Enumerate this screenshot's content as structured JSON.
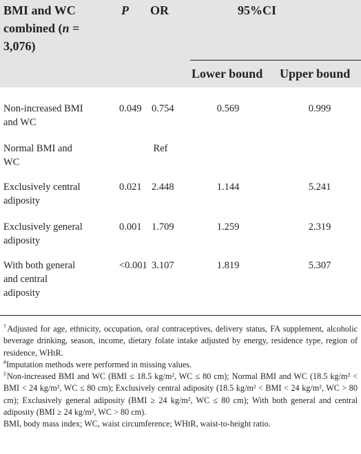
{
  "header": {
    "title_line1": "BMI and WC",
    "title_line2": "combined (",
    "title_n": "n",
    "title_eq": " =",
    "title_line3": "3,076)",
    "p_label": "P",
    "or_label": "OR",
    "ci_label": "95%CI",
    "lower_label": "Lower bound",
    "upper_label": "Upper bound"
  },
  "rows": [
    {
      "label_1": "Non-increased BMI",
      "label_2": "and WC",
      "p": "0.049",
      "or": "0.754",
      "lower": "0.569",
      "upper": "0.999"
    },
    {
      "label_1": "Normal BMI and",
      "label_2": "WC",
      "ref": "Ref"
    },
    {
      "label_1": "Exclusively central",
      "label_2": "adiposity",
      "p": "0.021",
      "or": "2.448",
      "lower": "1.144",
      "upper": "5.241"
    },
    {
      "label_1": "Exclusively general",
      "label_2": "adiposity",
      "p": "0.001",
      "or": "1.709",
      "lower": "1.259",
      "upper": "2.319"
    },
    {
      "label_1": "With both general",
      "label_2": "and central",
      "label_3": "adiposity",
      "p": "<0.001",
      "or": "3.107",
      "lower": "1.819",
      "upper": "5.307"
    }
  ],
  "notes": {
    "dagger_mark": "†",
    "dagger_text": "Adjusted for age, ethnicity, occupation, oral contraceptives, delivery status, FA supplement, alcoholic beverage drinking, season, income, dietary folate intake adjusted by energy, residence type, region of residence, WHtR.",
    "hash_mark": "#",
    "hash_text": "Imputation methods were performed in missing values.",
    "ddagger_mark": "‡",
    "ddagger_text": "Non-increased BMI and WC (BMI ≤ 18.5 kg/m², WC ≤ 80 cm); Normal BMI and WC (18.5 kg/m² < BMI < 24 kg/m², WC ≤ 80 cm); Exclusively central adiposity (18.5 kg/m² < BMI < 24 kg/m², WC > 80 cm); Exclusively general adiposity (BMI ≥ 24 kg/m², WC ≤ 80 cm); With both general and central adiposity (BMI ≥ 24 kg/m², WC > 80 cm).",
    "abbrev_text": "BMI, body mass index; WC, waist circumference; WHtR, waist-to-height ratio."
  }
}
